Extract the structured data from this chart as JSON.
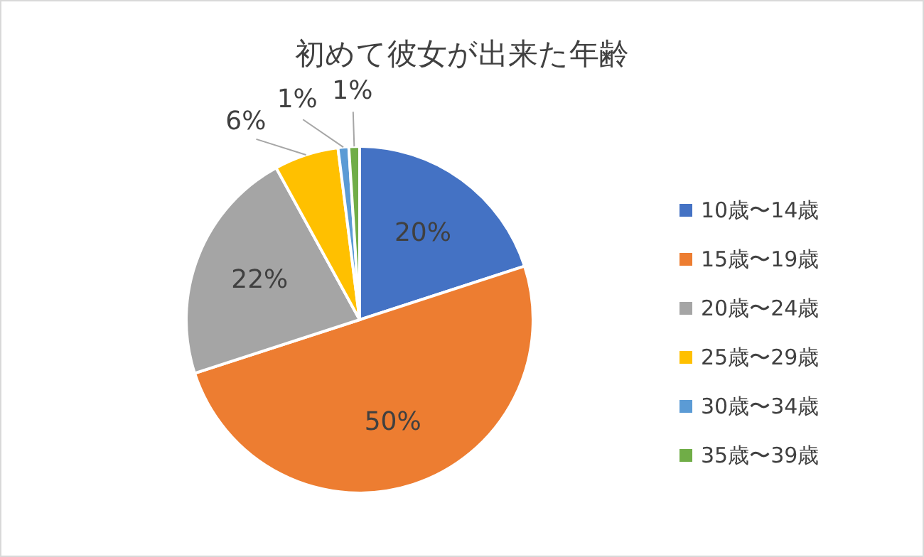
{
  "chart_data": {
    "type": "pie",
    "title": "初めて彼女が出来た年齢",
    "categories": [
      "10歳〜14歳",
      "15歳〜19歳",
      "20歳〜24歳",
      "25歳〜29歳",
      "30歳〜34歳",
      "35歳〜39歳"
    ],
    "values": [
      20,
      50,
      22,
      6,
      1,
      1
    ],
    "value_labels": [
      "20%",
      "50%",
      "22%",
      "6%",
      "1%",
      "1%"
    ],
    "colors": [
      "#4472c4",
      "#ed7d31",
      "#a5a5a5",
      "#ffc000",
      "#5b9bd5",
      "#70ad47"
    ],
    "legend": "right"
  }
}
